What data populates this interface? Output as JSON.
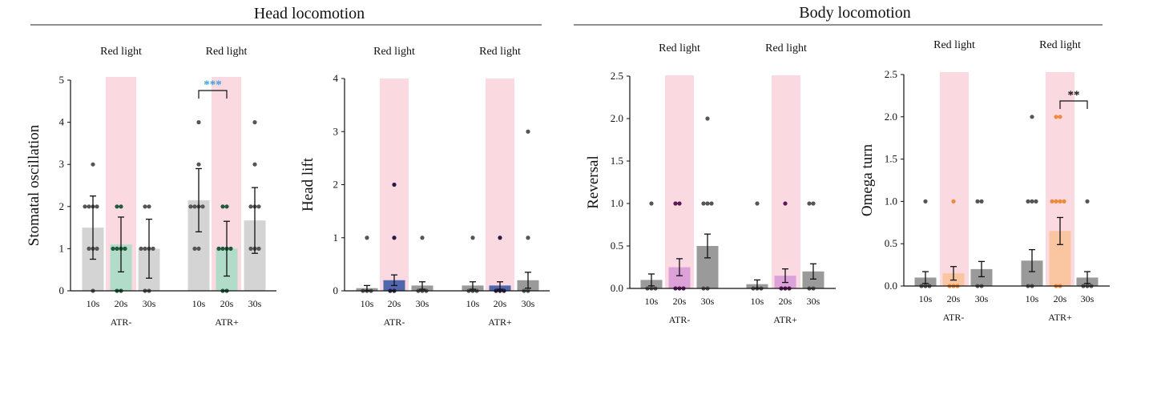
{
  "sections": [
    {
      "title": "Head locomotion"
    },
    {
      "title": "Body locomotion"
    }
  ],
  "chart_data": [
    {
      "type": "bar",
      "ylabel": "Stomatal oscillation",
      "ylim": [
        0,
        5
      ],
      "yticks": [
        "0",
        "1",
        "2",
        "3",
        "4",
        "5"
      ],
      "groups": [
        "ATR-",
        "ATR+"
      ],
      "categories": [
        "10s",
        "20s",
        "30s"
      ],
      "shaded_label": "Red light",
      "colors": {
        "base": "#cfcfcf",
        "highlight": "#a8dcc8",
        "points": "#555555",
        "highlight_points": "#1f5a3a",
        "shade": "#fbd9e0"
      },
      "values": [
        [
          1.5,
          1.1,
          1.0
        ],
        [
          2.15,
          1.0,
          1.67
        ]
      ],
      "errors": [
        [
          0.75,
          0.65,
          0.7
        ],
        [
          0.75,
          0.65,
          0.78
        ]
      ],
      "points": [
        [
          [
            3,
            2,
            2,
            2,
            2,
            1,
            1,
            1,
            0
          ],
          [
            2,
            2,
            1,
            1,
            1,
            1,
            0,
            0
          ],
          [
            2,
            2,
            1,
            1,
            1,
            1,
            0,
            0
          ]
        ],
        [
          [
            4,
            3,
            2,
            2,
            2,
            2,
            1,
            1
          ],
          [
            2,
            2,
            1,
            1,
            1,
            1,
            0,
            0
          ],
          [
            4,
            3,
            2,
            2,
            2,
            1,
            1,
            1
          ]
        ]
      ],
      "annotations": [
        {
          "group": 1,
          "from": 0,
          "to": 1,
          "text": "***",
          "color": "#3aa0e0"
        }
      ]
    },
    {
      "type": "bar",
      "ylabel": "Head lift",
      "ylim": [
        0,
        4
      ],
      "yticks": [
        "0",
        "1",
        "2",
        "3",
        "4"
      ],
      "groups": [
        "ATR-",
        "ATR+"
      ],
      "categories": [
        "10s",
        "20s",
        "30s"
      ],
      "shaded_label": "Red light",
      "colors": {
        "base": "#8f8f8f",
        "highlight": "#3d5aa8",
        "points": "#555555",
        "highlight_points": "#2a1a4a",
        "shade": "#fbd9e0"
      },
      "values": [
        [
          0.05,
          0.2,
          0.1
        ],
        [
          0.1,
          0.1,
          0.2
        ]
      ],
      "errors": [
        [
          0.05,
          0.1,
          0.07
        ],
        [
          0.07,
          0.07,
          0.15
        ]
      ],
      "points": [
        [
          [
            1,
            0,
            0,
            0
          ],
          [
            2,
            1,
            0,
            0
          ],
          [
            1,
            0,
            0,
            0
          ]
        ],
        [
          [
            1,
            0,
            0,
            0
          ],
          [
            1,
            0,
            0,
            0
          ],
          [
            3,
            1,
            0,
            0
          ]
        ]
      ],
      "annotations": []
    },
    {
      "type": "bar",
      "ylabel": "Reversal",
      "ylim": [
        0,
        2.5
      ],
      "yticks": [
        "0.0",
        "0.5",
        "1.0",
        "1.5",
        "2.0",
        "2.5"
      ],
      "groups": [
        "ATR-",
        "ATR+"
      ],
      "categories": [
        "10s",
        "20s",
        "30s"
      ],
      "shaded_label": "Red light",
      "colors": {
        "base": "#8f8f8f",
        "highlight": "#d89ad8",
        "points": "#555555",
        "highlight_points": "#5a1a5a",
        "shade": "#fbd9e0"
      },
      "values": [
        [
          0.1,
          0.25,
          0.5
        ],
        [
          0.05,
          0.15,
          0.2
        ]
      ],
      "errors": [
        [
          0.07,
          0.1,
          0.14
        ],
        [
          0.05,
          0.08,
          0.09
        ]
      ],
      "points": [
        [
          [
            1,
            0,
            0,
            0
          ],
          [
            1,
            1,
            0,
            0,
            0
          ],
          [
            2,
            1,
            1,
            1,
            0,
            0
          ]
        ],
        [
          [
            1,
            0,
            0,
            0
          ],
          [
            1,
            0,
            0,
            0
          ],
          [
            1,
            1,
            0,
            0
          ]
        ]
      ],
      "annotations": []
    },
    {
      "type": "bar",
      "ylabel": "Omega turn",
      "ylim": [
        0,
        2.5
      ],
      "yticks": [
        "0.0",
        "0.5",
        "1.0",
        "1.5",
        "2.0",
        "2.5"
      ],
      "groups": [
        "ATR-",
        "ATR+"
      ],
      "categories": [
        "10s",
        "20s",
        "30s"
      ],
      "shaded_label": "Red light",
      "colors": {
        "base": "#8f8f8f",
        "highlight": "#f9c39a",
        "points": "#555555",
        "highlight_points": "#f08a3a",
        "shade": "#fbd9e0"
      },
      "values": [
        [
          0.1,
          0.15,
          0.2
        ],
        [
          0.3,
          0.65,
          0.1
        ]
      ],
      "errors": [
        [
          0.07,
          0.08,
          0.09
        ],
        [
          0.13,
          0.16,
          0.07
        ]
      ],
      "points": [
        [
          [
            1,
            0,
            0,
            0
          ],
          [
            1,
            0,
            0,
            0
          ],
          [
            1,
            1,
            0,
            0
          ]
        ],
        [
          [
            2,
            1,
            1,
            1,
            0,
            0
          ],
          [
            2,
            2,
            1,
            1,
            1,
            1,
            0,
            0
          ],
          [
            1,
            0,
            0,
            0
          ]
        ]
      ],
      "annotations": [
        {
          "group": 1,
          "from": 1,
          "to": 2,
          "text": "**",
          "color": "#111111"
        }
      ]
    }
  ]
}
